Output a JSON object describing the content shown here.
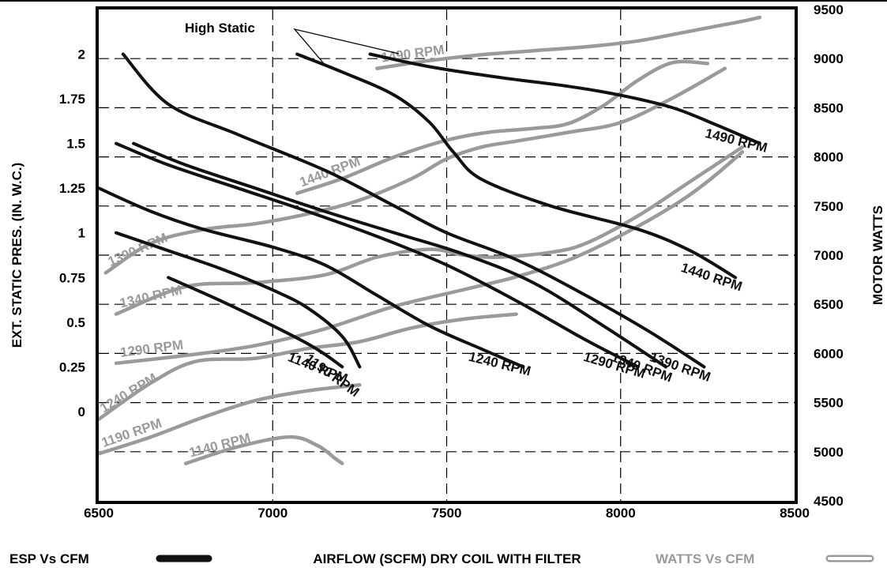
{
  "chart_data": {
    "type": "line",
    "xlabel": "AIRFLOW (SCFM) DRY COIL WITH FILTER",
    "ylabel_left": "EXT. STATIC PRES. (IN. W.C.)",
    "ylabel_right": "MOTOR WATTS",
    "xlim": [
      6500,
      8500
    ],
    "ylim_left": [
      -0.5,
      2.25
    ],
    "ylim_right": [
      4500,
      9500
    ],
    "x_ticks": [
      "6500",
      "7000",
      "7500",
      "8000",
      "8500"
    ],
    "y_left_ticks": [
      "2",
      "1.75",
      "1.5",
      "1.25",
      "1",
      "0.75",
      "0.5",
      "0.25",
      "0"
    ],
    "y_right_ticks": [
      "9500",
      "9000",
      "8500",
      "8000",
      "7500",
      "7000",
      "6500",
      "6000",
      "5500",
      "5000",
      "4500"
    ],
    "grid": true,
    "colors": {
      "esp": "#111111",
      "watts": "#9a9a9a"
    },
    "annotation": "High Static",
    "legend": {
      "esp_label": "ESP Vs CFM",
      "watts_label": "WATTS Vs CFM",
      "placement": "bottom"
    },
    "esp_series": [
      {
        "name": "1140 RPM",
        "x": [
          6700,
          6850,
          7000,
          7100,
          7150,
          7200
        ],
        "y": [
          0.75,
          0.62,
          0.48,
          0.38,
          0.32,
          0.25
        ]
      },
      {
        "name": "1190 RPM",
        "x": [
          6550,
          6700,
          6850,
          7000,
          7100,
          7200,
          7250
        ],
        "y": [
          1.0,
          0.9,
          0.8,
          0.68,
          0.58,
          0.42,
          0.25
        ]
      },
      {
        "name": "1240 RPM",
        "x": [
          6500,
          6650,
          6800,
          7000,
          7150,
          7300,
          7450,
          7600,
          7720
        ],
        "y": [
          1.25,
          1.12,
          1.02,
          0.92,
          0.82,
          0.65,
          0.48,
          0.35,
          0.25
        ]
      },
      {
        "name": "1290 RPM",
        "x": [
          6550,
          6700,
          6900,
          7100,
          7300,
          7500,
          7700,
          7900,
          8050
        ],
        "y": [
          1.5,
          1.38,
          1.25,
          1.12,
          0.98,
          0.82,
          0.62,
          0.4,
          0.25
        ]
      },
      {
        "name": "1340 RPM",
        "x": [
          6600,
          6750,
          6950,
          7150,
          7350,
          7550,
          7750,
          7950,
          8130
        ],
        "y": [
          1.5,
          1.38,
          1.25,
          1.12,
          1.0,
          0.88,
          0.72,
          0.48,
          0.25
        ]
      },
      {
        "name": "1390 RPM",
        "x": [
          6570,
          6700,
          6900,
          7150,
          7350,
          7500,
          7700,
          7900,
          8080,
          8240
        ],
        "y": [
          2.0,
          1.72,
          1.55,
          1.35,
          1.15,
          1.0,
          0.85,
          0.65,
          0.45,
          0.25
        ]
      },
      {
        "name": "1440 RPM",
        "x": [
          7070,
          7200,
          7350,
          7450,
          7520,
          7600,
          7800,
          8050,
          8200,
          8330
        ],
        "y": [
          2.0,
          1.9,
          1.77,
          1.62,
          1.45,
          1.3,
          1.15,
          1.02,
          0.9,
          0.75
        ]
      },
      {
        "name": "1490 RPM",
        "x": [
          7280,
          7450,
          7650,
          7850,
          8000,
          8150,
          8280,
          8400
        ],
        "y": [
          2.0,
          1.93,
          1.87,
          1.82,
          1.77,
          1.7,
          1.6,
          1.5
        ]
      }
    ],
    "watts_series": [
      {
        "name": "1140 RPM",
        "x": [
          6750,
          6900,
          7050,
          7130,
          7180,
          7200
        ],
        "y": [
          4880,
          5050,
          5150,
          5060,
          4930,
          4880
        ]
      },
      {
        "name": "1190 RPM",
        "x": [
          6500,
          6650,
          6800,
          6950,
          7100,
          7250
        ],
        "y": [
          4980,
          5150,
          5350,
          5520,
          5620,
          5680
        ]
      },
      {
        "name": "1240 RPM",
        "x": [
          6500,
          6650,
          6780,
          6950,
          7100,
          7250,
          7400,
          7550,
          7700
        ],
        "y": [
          5330,
          5700,
          5920,
          5950,
          6050,
          6120,
          6260,
          6350,
          6400
        ]
      },
      {
        "name": "1290 RPM",
        "x": [
          6550,
          6750,
          6950,
          7150,
          7350,
          7550,
          7700,
          7850,
          8000,
          8150,
          8250,
          8350
        ],
        "y": [
          5900,
          5980,
          6080,
          6250,
          6480,
          6650,
          6780,
          6950,
          7200,
          7500,
          7750,
          8050
        ]
      },
      {
        "name": "1340 RPM",
        "x": [
          6550,
          6750,
          6950,
          7150,
          7300,
          7450,
          7550,
          7650,
          7800,
          7900,
          8050,
          8200,
          8350
        ],
        "y": [
          6400,
          6680,
          6720,
          6800,
          6980,
          7060,
          7000,
          6980,
          7030,
          7120,
          7400,
          7750,
          8100
        ]
      },
      {
        "name": "1390 RPM",
        "x": [
          6520,
          6650,
          6800,
          6950,
          7100,
          7250,
          7400,
          7500,
          7600,
          7700,
          7850,
          8000,
          8150,
          8300
        ],
        "y": [
          6820,
          7120,
          7260,
          7320,
          7420,
          7560,
          7780,
          7980,
          8100,
          8160,
          8250,
          8350,
          8600,
          8900
        ]
      },
      {
        "name": "1440 RPM",
        "x": [
          7070,
          7200,
          7350,
          7500,
          7620,
          7750,
          7850,
          7950,
          8050,
          8150,
          8250
        ],
        "y": [
          7630,
          7780,
          8000,
          8170,
          8250,
          8290,
          8340,
          8520,
          8780,
          8960,
          8950
        ]
      },
      {
        "name": "1490 RPM",
        "x": [
          7300,
          7450,
          7600,
          7750,
          7900,
          8050,
          8200,
          8350,
          8400
        ],
        "y": [
          8900,
          8980,
          9040,
          9080,
          9120,
          9180,
          9280,
          9380,
          9420
        ]
      }
    ]
  }
}
